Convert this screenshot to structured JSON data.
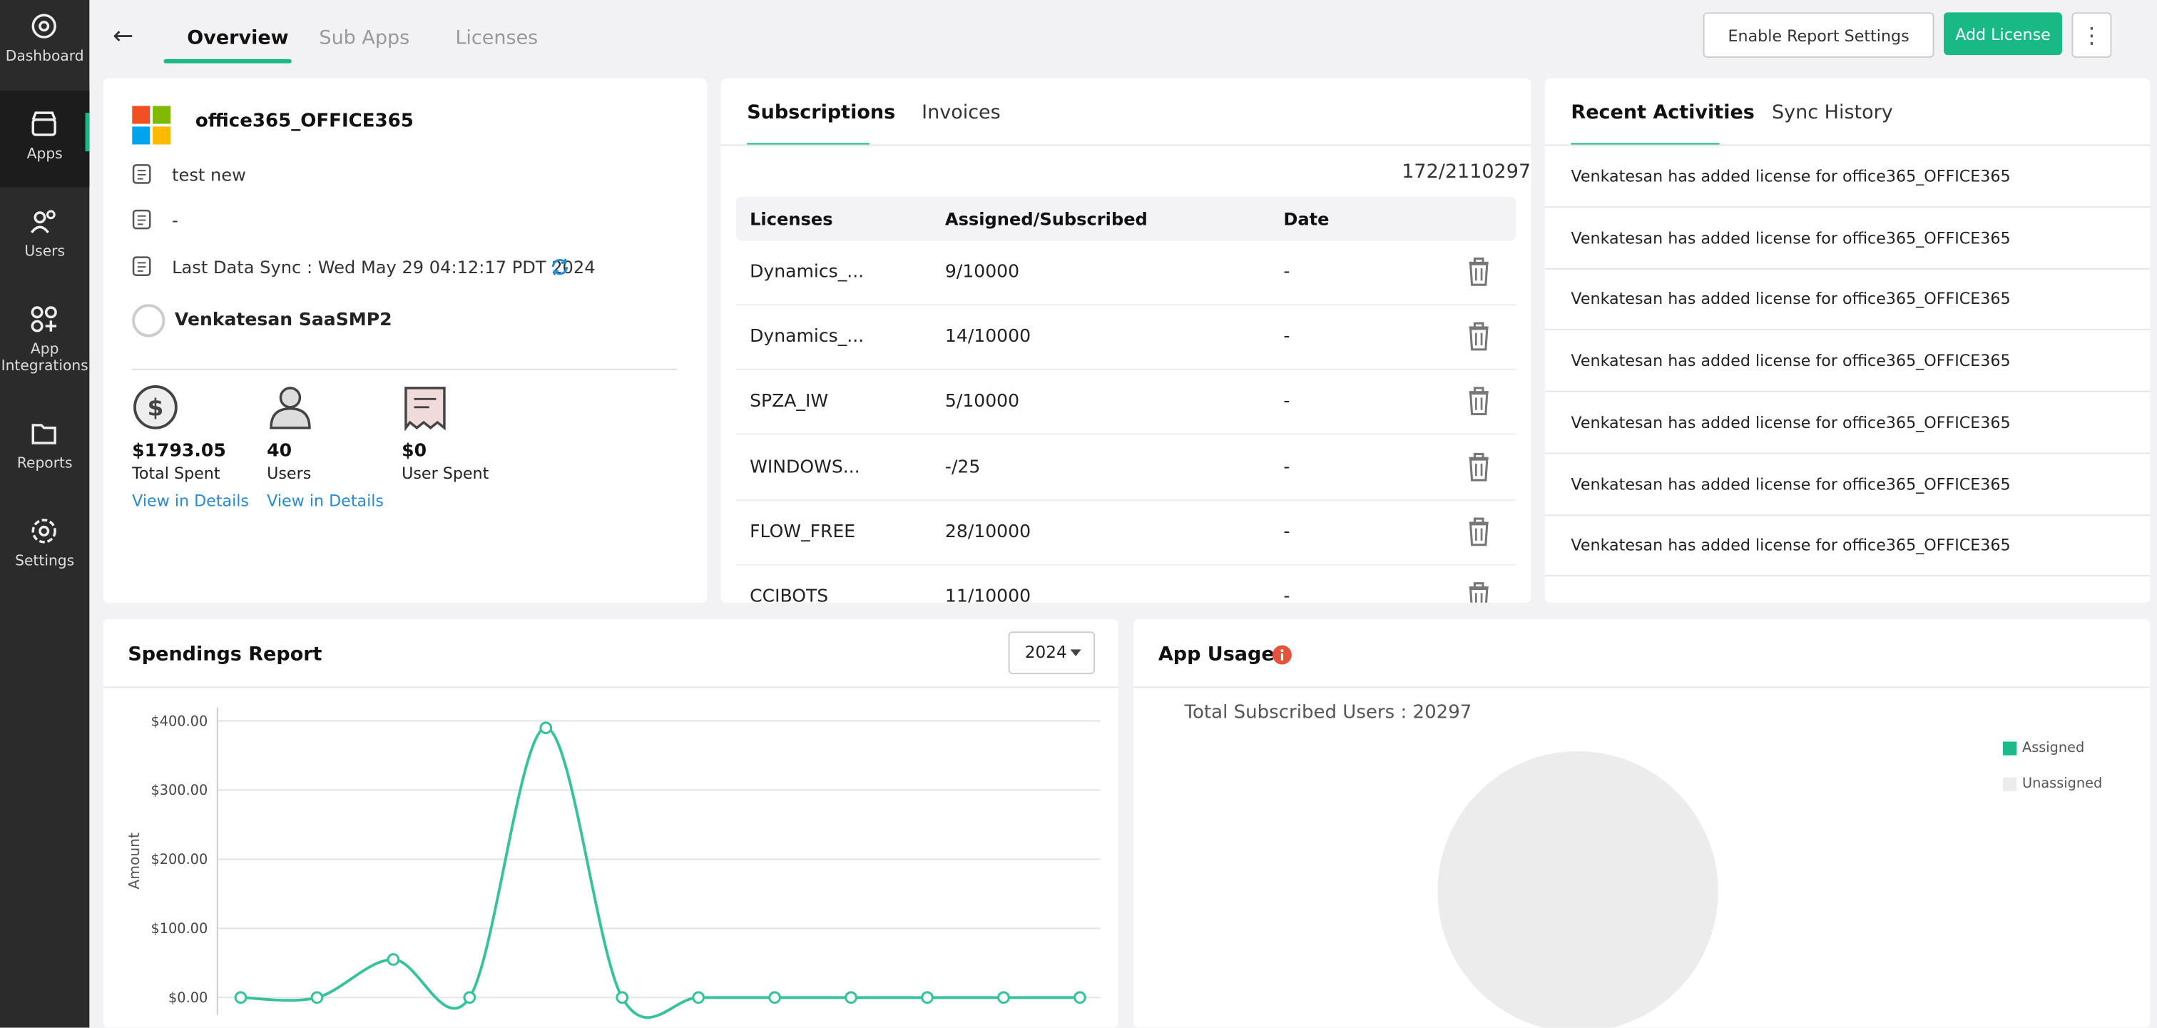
{
  "sidebar": {
    "items": [
      "Dashboard",
      "Apps",
      "Users",
      "App Integrations",
      "Reports",
      "Settings"
    ],
    "active_index": 1
  },
  "tabs": {
    "items": [
      "Overview",
      "Sub Apps",
      "Licenses"
    ],
    "active_index": 0
  },
  "header_actions": {
    "enable_report_settings": "Enable Report Settings",
    "add_license": "Add License"
  },
  "app_card": {
    "name": "office365_OFFICE365",
    "description": "test new",
    "date": "-",
    "last_sync": "Last Data Sync : Wed May 29 04:12:17 PDT 2024",
    "owner": "Venkatesan SaaSMP2",
    "stats": [
      {
        "value": "$1793.05",
        "label": "Total Spent",
        "link": "View in Details"
      },
      {
        "value": "40",
        "label": "Users",
        "link": "View in Details"
      },
      {
        "value": "$0",
        "label": "User Spent"
      }
    ]
  },
  "subscriptions": {
    "tabs": [
      "Subscriptions",
      "Invoices"
    ],
    "active_index": 0,
    "total": "172/2110297",
    "columns": [
      "Licenses",
      "Assigned/Subscribed",
      "Date"
    ],
    "rows": [
      [
        "Dynamics_...",
        "9/10000",
        "-"
      ],
      [
        "Dynamics_...",
        "14/10000",
        "-"
      ],
      [
        "SPZA_IW",
        "5/10000",
        "-"
      ],
      [
        "WINDOWS...",
        "-/25",
        "-"
      ],
      [
        "FLOW_FREE",
        "28/10000",
        "-"
      ],
      [
        "CCIBOTS",
        "11/10000",
        "-"
      ]
    ]
  },
  "activities": {
    "tabs": [
      "Recent Activities",
      "Sync History"
    ],
    "active_index": 0,
    "items": [
      "Venkatesan has added license for office365_OFFICE365",
      "Venkatesan has added license for office365_OFFICE365",
      "Venkatesan has added license for office365_OFFICE365",
      "Venkatesan has added license for office365_OFFICE365",
      "Venkatesan has added license for office365_OFFICE365",
      "Venkatesan has added license for office365_OFFICE365",
      "Venkatesan has added license for office365_OFFICE365"
    ]
  },
  "spendings": {
    "title": "Spendings Report",
    "year": "2024",
    "chart_data": {
      "type": "line",
      "y_label": "Amount",
      "color": "#36c39b",
      "grid": true,
      "categories": [
        null,
        null,
        null,
        null,
        null,
        null,
        null,
        null,
        null,
        null,
        null,
        null
      ],
      "values": [
        0,
        0,
        55,
        0,
        390,
        0,
        0,
        0,
        0,
        0,
        0,
        0
      ],
      "ylim": [
        -25,
        420
      ],
      "yticks": [
        {
          "value": 0,
          "label": "$0.00"
        },
        {
          "value": 100,
          "label": "$100.00"
        },
        {
          "value": 200,
          "label": "$200.00"
        },
        {
          "value": 300,
          "label": "$300.00"
        },
        {
          "value": 400,
          "label": "$400.00"
        }
      ]
    }
  },
  "app_usage": {
    "title": "App Usage",
    "total": "Total Subscribed Users : 20297",
    "legend": [
      {
        "name": "Assigned",
        "color": "#1db98b"
      },
      {
        "name": "Unassigned",
        "color": "#ececec"
      }
    ]
  }
}
